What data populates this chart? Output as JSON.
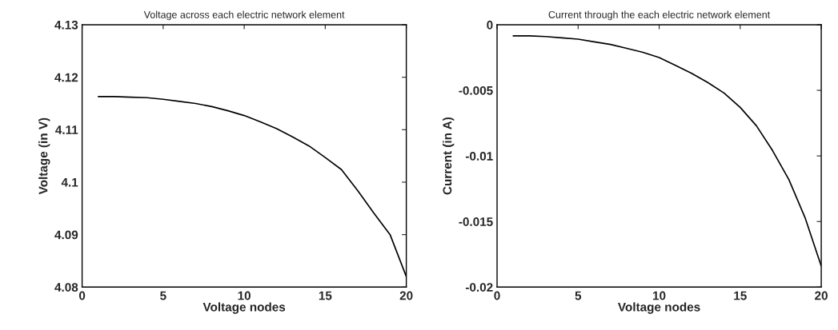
{
  "chart_data": [
    {
      "type": "line",
      "title": "Voltage across each electric network element",
      "xlabel": "Voltage nodes",
      "ylabel": "Voltage (in V)",
      "x": [
        1,
        2,
        3,
        4,
        5,
        6,
        7,
        8,
        9,
        10,
        11,
        12,
        13,
        14,
        15,
        16,
        17,
        18,
        19,
        20
      ],
      "series": [
        {
          "color": "#000000",
          "values": [
            4.1163,
            4.1163,
            4.1162,
            4.1161,
            4.1158,
            4.1154,
            4.115,
            4.1144,
            4.1136,
            4.1127,
            4.1115,
            4.1102,
            4.1086,
            4.1069,
            4.1047,
            4.1024,
            4.0984,
            4.0941,
            4.09,
            4.082
          ]
        }
      ],
      "xlim": [
        0,
        20
      ],
      "xticks": [
        0,
        5,
        10,
        15,
        20
      ],
      "ylim": [
        4.08,
        4.13
      ],
      "yticks": [
        {
          "value": 4.08,
          "label": "4.08"
        },
        {
          "value": 4.09,
          "label": "4.09"
        },
        {
          "value": 4.1,
          "label": "4.1"
        },
        {
          "value": 4.11,
          "label": "4.11"
        },
        {
          "value": 4.12,
          "label": "4.12"
        },
        {
          "value": 4.13,
          "label": "4.13"
        }
      ],
      "grid": false,
      "legend": false
    },
    {
      "type": "line",
      "title": "Current through the each electric network element",
      "xlabel": "Voltage nodes",
      "ylabel": "Current (in A)",
      "x": [
        1,
        2,
        3,
        4,
        5,
        6,
        7,
        8,
        9,
        10,
        11,
        12,
        13,
        14,
        15,
        16,
        17,
        18,
        19,
        20
      ],
      "series": [
        {
          "color": "#000000",
          "values": [
            -0.00085,
            -0.00085,
            -0.0009,
            -0.001,
            -0.0011,
            -0.0013,
            -0.0015,
            -0.0018,
            -0.0021,
            -0.0025,
            -0.0031,
            -0.0037,
            -0.0044,
            -0.0052,
            -0.0063,
            -0.0077,
            -0.0096,
            -0.0118,
            -0.0147,
            -0.0184
          ]
        }
      ],
      "xlim": [
        0,
        20
      ],
      "xticks": [
        0,
        5,
        10,
        15,
        20
      ],
      "ylim": [
        -0.02,
        0
      ],
      "yticks": [
        -0.02,
        -0.015,
        -0.01,
        -0.005,
        0
      ],
      "grid": false,
      "legend": false
    }
  ]
}
